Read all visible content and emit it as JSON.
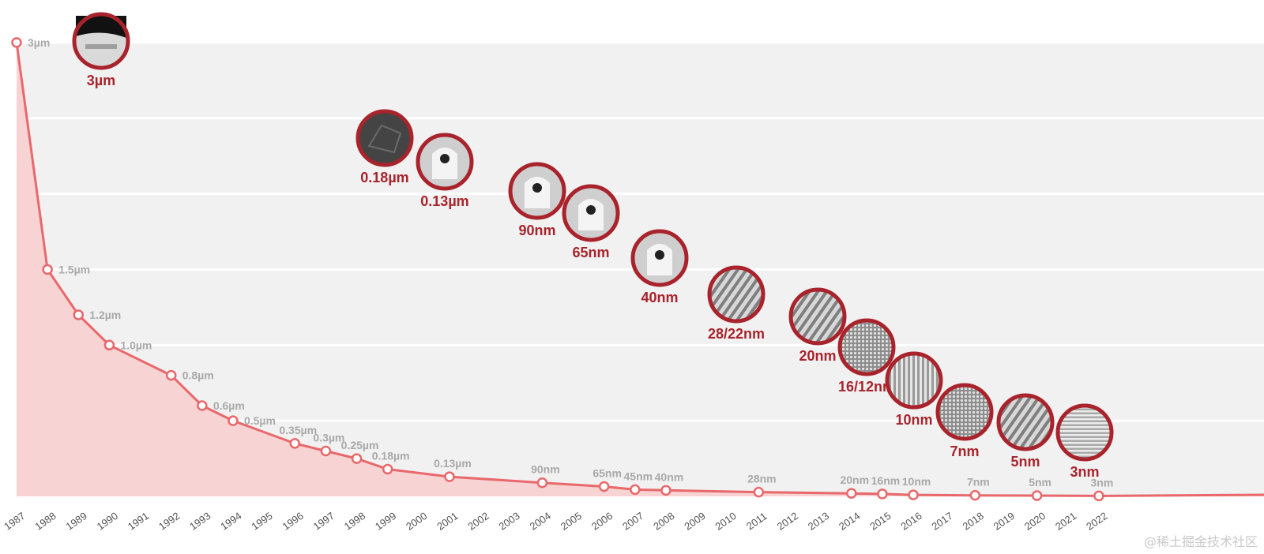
{
  "chart_data": {
    "type": "line",
    "x_unit": "year",
    "points": [
      {
        "year": 1987,
        "nm": 3000,
        "label": "3µm"
      },
      {
        "year": 1988,
        "nm": 1500,
        "label": "1.5µm"
      },
      {
        "year": 1989,
        "nm": 1200,
        "label": "1.2µm"
      },
      {
        "year": 1990,
        "nm": 1000,
        "label": "1.0µm"
      },
      {
        "year": 1992,
        "nm": 800,
        "label": "0.8µm"
      },
      {
        "year": 1993,
        "nm": 600,
        "label": "0.6µm"
      },
      {
        "year": 1994,
        "nm": 500,
        "label": "0.5µm"
      },
      {
        "year": 1996,
        "nm": 350,
        "label": "0.35µm"
      },
      {
        "year": 1997,
        "nm": 300,
        "label": "0.3µm"
      },
      {
        "year": 1998,
        "nm": 250,
        "label": "0.25µm"
      },
      {
        "year": 1999,
        "nm": 180,
        "label": "0.18µm"
      },
      {
        "year": 2001,
        "nm": 130,
        "label": "0.13µm"
      },
      {
        "year": 2004,
        "nm": 90,
        "label": "90nm"
      },
      {
        "year": 2006,
        "nm": 65,
        "label": "65nm"
      },
      {
        "year": 2007,
        "nm": 45,
        "label": "45nm"
      },
      {
        "year": 2008,
        "nm": 40,
        "label": "40nm"
      },
      {
        "year": 2011,
        "nm": 28,
        "label": "28nm"
      },
      {
        "year": 2014,
        "nm": 20,
        "label": "20nm"
      },
      {
        "year": 2015,
        "nm": 16,
        "label": "16nm"
      },
      {
        "year": 2016,
        "nm": 10,
        "label": "10nm"
      },
      {
        "year": 2018,
        "nm": 7,
        "label": "7nm"
      },
      {
        "year": 2020,
        "nm": 5,
        "label": "5nm"
      },
      {
        "year": 2022,
        "nm": 3,
        "label": "3nm"
      }
    ],
    "x_ticks": [
      1987,
      1988,
      1989,
      1990,
      1991,
      1992,
      1993,
      1994,
      1995,
      1996,
      1997,
      1998,
      1999,
      2000,
      2001,
      2002,
      2003,
      2004,
      2005,
      2006,
      2007,
      2008,
      2009,
      2010,
      2011,
      2012,
      2013,
      2014,
      2015,
      2016,
      2017,
      2018,
      2019,
      2020,
      2021,
      2022
    ],
    "xlim": [
      1987,
      2027
    ],
    "ylim": [
      0,
      3000
    ],
    "gridlines_nm": [
      500,
      1000,
      1500,
      2000,
      2500,
      3000
    ],
    "grid": true,
    "legend": "none",
    "colors": {
      "line": "#e8686b",
      "area": "#f7d3d4",
      "node_ring": "#a8232b",
      "label_node": "#a8232b",
      "label_value": "#a9a9a9",
      "band": "#f1f1f1"
    },
    "process_nodes": [
      {
        "label": "3µm",
        "texture": "layered"
      },
      {
        "label": "0.18µm",
        "texture": "dark"
      },
      {
        "label": "0.13µm",
        "texture": "gate"
      },
      {
        "label": "90nm",
        "texture": "gate"
      },
      {
        "label": "65nm",
        "texture": "gate"
      },
      {
        "label": "40nm",
        "texture": "gate"
      },
      {
        "label": "28/22nm",
        "texture": "fins"
      },
      {
        "label": "20nm",
        "texture": "fins"
      },
      {
        "label": "16/12nm",
        "texture": "dense"
      },
      {
        "label": "10nm",
        "texture": "stripes"
      },
      {
        "label": "7nm",
        "texture": "dense"
      },
      {
        "label": "5nm",
        "texture": "fins"
      },
      {
        "label": "3nm",
        "texture": "hstripes"
      }
    ]
  },
  "watermark": "@稀土掘金技术社区"
}
